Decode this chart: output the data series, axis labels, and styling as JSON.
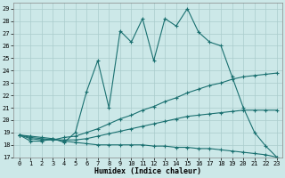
{
  "xlabel": "Humidex (Indice chaleur)",
  "xlim": [
    -0.5,
    23.5
  ],
  "ylim": [
    17,
    29.5
  ],
  "yticks": [
    17,
    18,
    19,
    20,
    21,
    22,
    23,
    24,
    25,
    26,
    27,
    28,
    29
  ],
  "xticks": [
    0,
    1,
    2,
    3,
    4,
    5,
    6,
    7,
    8,
    9,
    10,
    11,
    12,
    13,
    14,
    15,
    16,
    17,
    18,
    19,
    20,
    21,
    22,
    23
  ],
  "bg_color": "#cce8e8",
  "line_color": "#1a7070",
  "grid_color": "#aacccc",
  "line1_x": [
    0,
    1,
    2,
    3,
    4,
    5,
    6,
    7,
    8,
    9,
    10,
    11,
    12,
    13,
    14,
    15,
    16,
    17,
    18,
    19,
    20,
    21,
    22,
    23
  ],
  "line1_y": [
    18.8,
    18.3,
    18.3,
    18.5,
    18.2,
    19.0,
    22.3,
    24.8,
    21.0,
    27.2,
    26.3,
    28.2,
    24.8,
    28.2,
    27.6,
    29.0,
    27.1,
    26.3,
    26.0,
    23.5,
    21.0,
    19.0,
    17.9,
    17.0
  ],
  "line2_x": [
    0,
    1,
    2,
    3,
    4,
    5,
    6,
    7,
    8,
    9,
    10,
    11,
    12,
    13,
    14,
    15,
    16,
    17,
    18,
    19,
    20,
    21,
    22,
    23
  ],
  "line2_y": [
    18.8,
    18.5,
    18.4,
    18.4,
    18.6,
    18.7,
    19.0,
    19.3,
    19.7,
    20.1,
    20.4,
    20.8,
    21.1,
    21.5,
    21.8,
    22.2,
    22.5,
    22.8,
    23.0,
    23.3,
    23.5,
    23.6,
    23.7,
    23.8
  ],
  "line3_x": [
    0,
    1,
    2,
    3,
    4,
    5,
    6,
    7,
    8,
    9,
    10,
    11,
    12,
    13,
    14,
    15,
    16,
    17,
    18,
    19,
    20,
    21,
    22,
    23
  ],
  "line3_y": [
    18.8,
    18.6,
    18.5,
    18.4,
    18.4,
    18.4,
    18.5,
    18.7,
    18.9,
    19.1,
    19.3,
    19.5,
    19.7,
    19.9,
    20.1,
    20.3,
    20.4,
    20.5,
    20.6,
    20.7,
    20.8,
    20.8,
    20.8,
    20.8
  ],
  "line4_x": [
    0,
    1,
    2,
    3,
    4,
    5,
    6,
    7,
    8,
    9,
    10,
    11,
    12,
    13,
    14,
    15,
    16,
    17,
    18,
    19,
    20,
    21,
    22,
    23
  ],
  "line4_y": [
    18.8,
    18.7,
    18.6,
    18.5,
    18.3,
    18.2,
    18.1,
    18.0,
    18.0,
    18.0,
    18.0,
    18.0,
    17.9,
    17.9,
    17.8,
    17.8,
    17.7,
    17.7,
    17.6,
    17.5,
    17.4,
    17.3,
    17.2,
    17.0
  ],
  "marker": "+",
  "markersize": 3,
  "linewidth": 0.8,
  "tick_fontsize": 5,
  "xlabel_fontsize": 6
}
